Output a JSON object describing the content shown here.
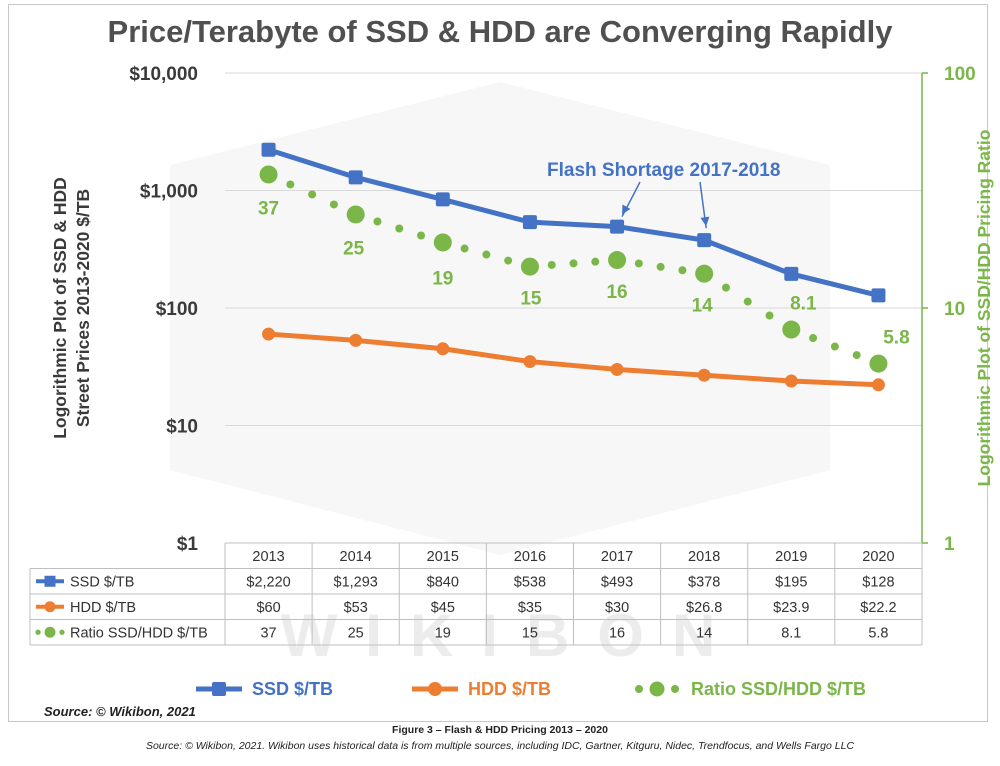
{
  "title": "Price/Terabyte of SSD & HDD are Converging Rapidly",
  "watermark": "WIKIBON",
  "y_left_title": [
    "Logorithmic Plot of SSD & HDD",
    "Street Prices 2013-2020 $/TB"
  ],
  "y_right_title": "Logorithmic Plot of SSD/HDD Pricing Ratio",
  "annotation": "Flash Shortage 2017-2018",
  "source_note": "Source: © Wikibon, 2021",
  "figure_caption": "Figure 3 – Flash & HDD Pricing 2013 – 2020",
  "figure_source": "Source: © Wikibon, 2021. Wikibon uses historical data is from multiple sources, including IDC, Gartner, Kitguru, Nidec, Trendfocus, and Wells Fargo LLC",
  "colors": {
    "ssd": "#4472c4",
    "hdd": "#ed7d31",
    "ratio": "#7ab648",
    "text": "#3a3a3a",
    "grid": "#d9d9d9"
  },
  "chart_data": {
    "type": "line",
    "title": "Price/Terabyte of SSD & HDD are Converging Rapidly",
    "categories": [
      "2013",
      "2014",
      "2015",
      "2016",
      "2017",
      "2018",
      "2019",
      "2020"
    ],
    "y_left": {
      "scale": "log",
      "range": [
        1,
        10000
      ],
      "ticks": [
        1,
        10,
        100,
        1000,
        10000
      ],
      "tick_labels": [
        "$1",
        "$10",
        "$100",
        "$1,000",
        "$10,000"
      ]
    },
    "y_right": {
      "scale": "log",
      "range": [
        1,
        100
      ],
      "ticks": [
        1,
        10,
        100
      ],
      "tick_labels": [
        "1",
        "10",
        "100"
      ]
    },
    "series": [
      {
        "name": "SSD $/TB",
        "axis": "left",
        "style": "solid",
        "color": "#4472c4",
        "values": [
          2220,
          1293,
          840,
          538,
          493,
          378,
          195,
          128
        ],
        "table": [
          "$2,220",
          "$1,293",
          "$840",
          "$538",
          "$493",
          "$378",
          "$195",
          "$128"
        ]
      },
      {
        "name": "HDD $/TB",
        "axis": "left",
        "style": "solid",
        "color": "#ed7d31",
        "values": [
          60,
          53,
          45,
          35,
          30,
          26.8,
          23.9,
          22.2
        ],
        "table": [
          "$60",
          "$53",
          "$45",
          "$35",
          "$30",
          "$26.8",
          "$23.9",
          "$22.2"
        ]
      },
      {
        "name": "Ratio SSD/HDD $/TB",
        "axis": "right",
        "style": "dotted",
        "color": "#7ab648",
        "values": [
          37,
          25,
          19,
          15,
          16,
          14,
          8.1,
          5.8
        ],
        "table": [
          "37",
          "25",
          "19",
          "15",
          "16",
          "14",
          "8.1",
          "5.8"
        ]
      }
    ],
    "legend": [
      {
        "name": "SSD $/TB",
        "style": "solid",
        "color": "#4472c4"
      },
      {
        "name": "HDD $/TB",
        "style": "solid",
        "color": "#ed7d31"
      },
      {
        "name": "Ratio SSD/HDD $/TB",
        "style": "dotted",
        "color": "#7ab648"
      }
    ],
    "legend_position": "bottom",
    "annotation": {
      "text": "Flash Shortage 2017-2018",
      "arrows_to": [
        "2017",
        "2018"
      ],
      "series": "SSD $/TB"
    }
  }
}
